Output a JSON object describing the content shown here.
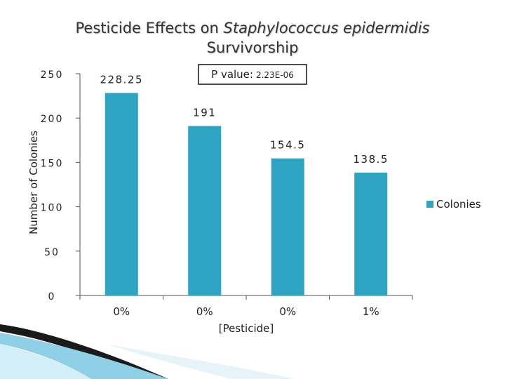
{
  "chart_data": {
    "type": "bar",
    "title": "Pesticide Effects on Staphylococcus epidermidis Survivorship",
    "title_parts": {
      "before": "Pesticide Effects on ",
      "italic": "Staphylococcus epidermidis",
      "line2": "Survivorship"
    },
    "xlabel": "[Pesticide]",
    "ylabel": "Number of Colonies",
    "categories": [
      "0%",
      "0%",
      "0%",
      "1%"
    ],
    "series": [
      {
        "name": "Colonies",
        "values": [
          228.25,
          191,
          154.5,
          138.5
        ],
        "color": "#2ea4c2"
      }
    ],
    "data_labels": [
      "228.25",
      "191",
      "154.5",
      "138.5"
    ],
    "ylim": [
      0,
      250
    ],
    "yticks": [
      0,
      50,
      100,
      150,
      200,
      250
    ],
    "grid": false,
    "legend_position": "right",
    "annotation": {
      "label": "P value:",
      "value": "2.23E-06"
    }
  }
}
